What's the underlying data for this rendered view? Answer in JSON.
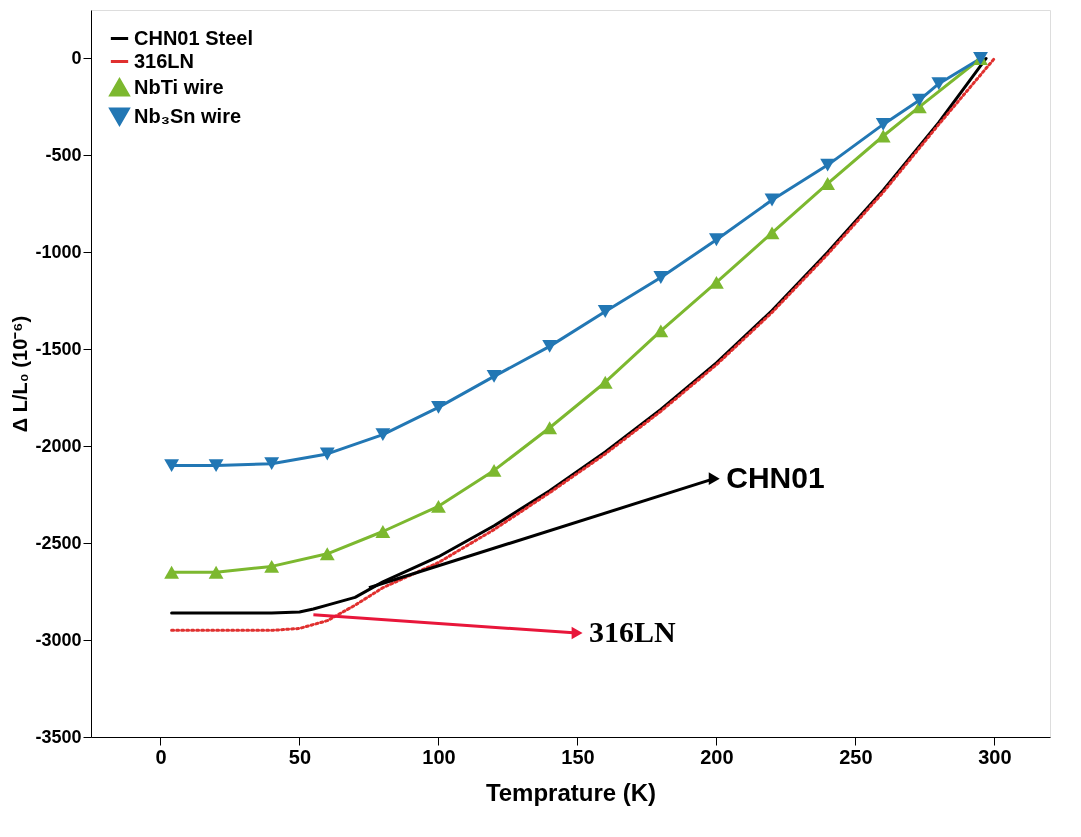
{
  "chart_data": {
    "type": "line",
    "xlabel": "Temprature (K)",
    "ylabel": "Δ L/L₀ (10⁻⁶)",
    "xlim": [
      -25,
      320
    ],
    "ylim": [
      -3500,
      250
    ],
    "xticks": [
      0,
      50,
      100,
      150,
      200,
      250,
      300
    ],
    "yticks": [
      -3500,
      -3000,
      -2500,
      -2000,
      -1500,
      -1000,
      -500,
      0
    ],
    "grid": false,
    "legend": "top left",
    "series": [
      {
        "name": "CHN01 Steel",
        "color": "#000000",
        "line_style": "solid",
        "marker": "none",
        "x": [
          4,
          20,
          40,
          50,
          55,
          60,
          70,
          80,
          100,
          120,
          140,
          160,
          180,
          200,
          220,
          240,
          260,
          280,
          297
        ],
        "values": [
          -2860,
          -2860,
          -2860,
          -2855,
          -2840,
          -2820,
          -2780,
          -2700,
          -2570,
          -2410,
          -2230,
          -2030,
          -1810,
          -1570,
          -1300,
          -1000,
          -680,
          -330,
          0
        ]
      },
      {
        "name": "316LN",
        "color": "#e0302f",
        "line_style": "dotted",
        "marker": "none",
        "x": [
          4,
          20,
          40,
          50,
          60,
          70,
          80,
          100,
          120,
          140,
          160,
          180,
          200,
          220,
          240,
          260,
          280,
          300
        ],
        "values": [
          -2950,
          -2950,
          -2950,
          -2940,
          -2900,
          -2820,
          -2730,
          -2600,
          -2430,
          -2240,
          -2040,
          -1820,
          -1580,
          -1310,
          -1010,
          -690,
          -340,
          0
        ]
      },
      {
        "name": "NbTi wire",
        "color": "#7cb82f",
        "line_style": "solid",
        "marker": "triangle",
        "x": [
          4,
          20,
          40,
          60,
          80,
          100,
          120,
          140,
          160,
          180,
          200,
          220,
          240,
          260,
          273,
          295
        ],
        "values": [
          -2650,
          -2650,
          -2620,
          -2555,
          -2440,
          -2310,
          -2125,
          -1905,
          -1670,
          -1405,
          -1155,
          -900,
          -645,
          -400,
          -250,
          0
        ]
      },
      {
        "name": "Nb₃Sn wire",
        "color": "#2277b4",
        "line_style": "solid",
        "marker": "triangle-down",
        "x": [
          4,
          20,
          40,
          60,
          80,
          100,
          120,
          140,
          160,
          180,
          200,
          220,
          240,
          260,
          273,
          280,
          295
        ],
        "values": [
          -2100,
          -2100,
          -2090,
          -2040,
          -1940,
          -1800,
          -1640,
          -1485,
          -1305,
          -1130,
          -935,
          -730,
          -550,
          -340,
          -215,
          -130,
          0
        ]
      }
    ],
    "annotations": [
      {
        "text": "CHN01",
        "x": 75,
        "y": -2730
      },
      {
        "text": "316LN",
        "x": 55,
        "y": -2870
      }
    ]
  }
}
